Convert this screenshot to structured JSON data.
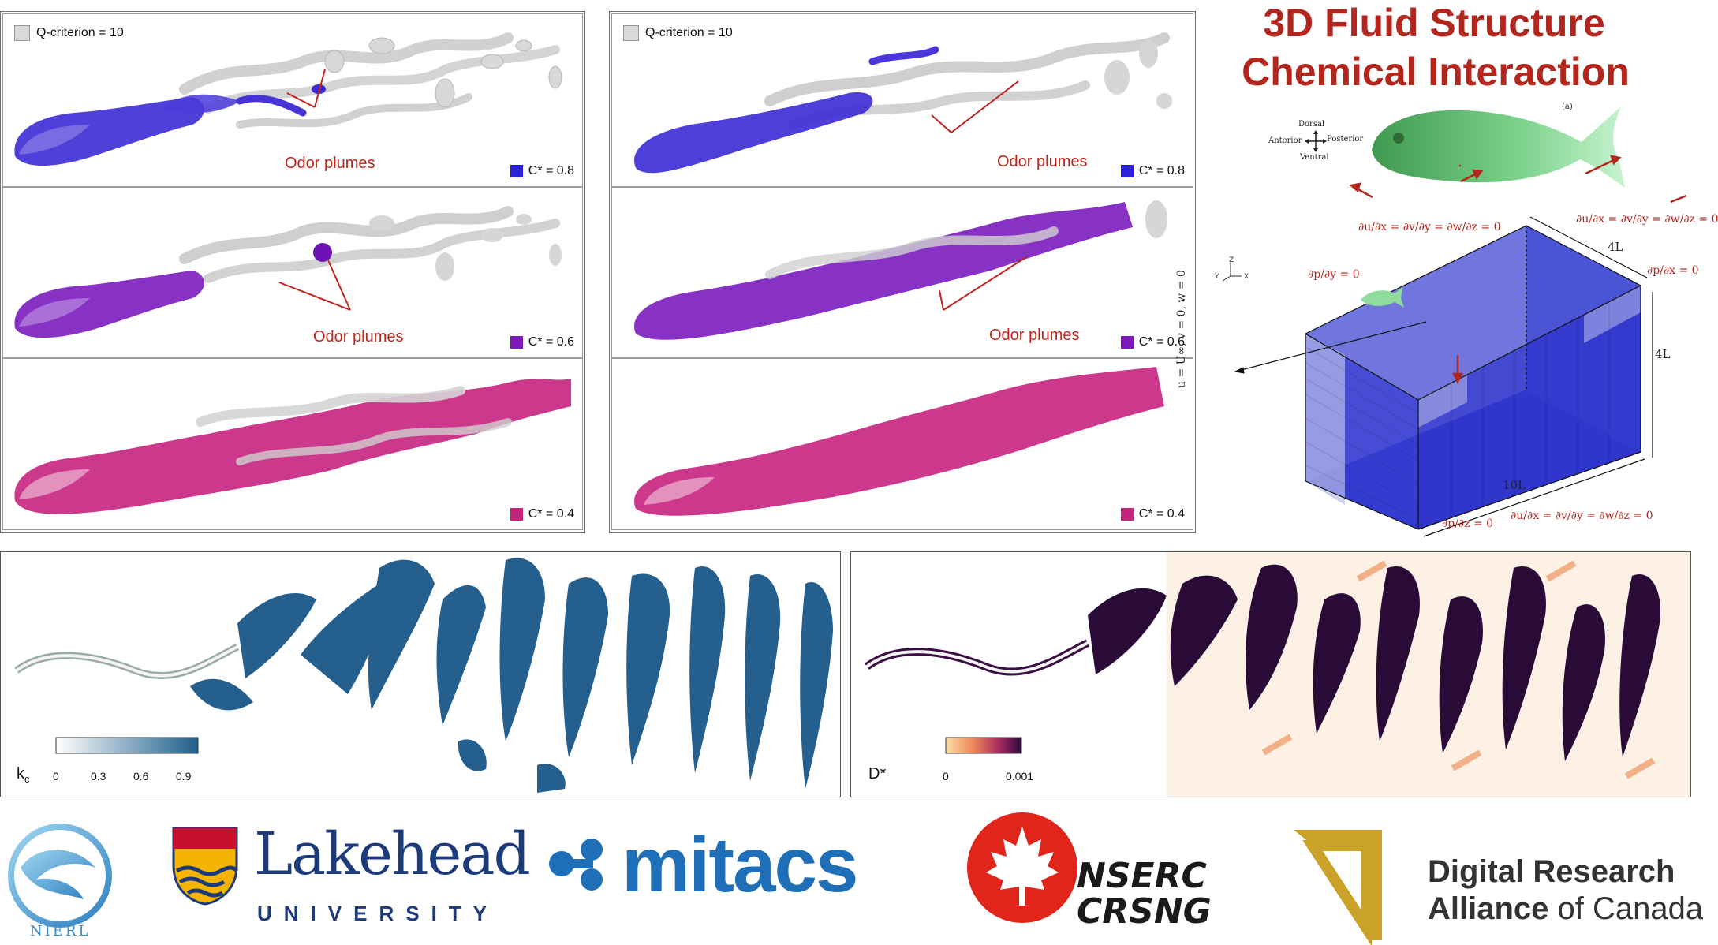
{
  "panels_3d": {
    "left": {
      "q_legend": "Q-criterion = 10",
      "odor_label_1": "Odor plumes",
      "odor_label_2": "Odor plumes",
      "c_labels": [
        "C* = 0.8",
        "C* = 0.6",
        "C* = 0.4"
      ]
    },
    "right": {
      "q_legend": "Q-criterion = 10",
      "odor_label_1": "Odor plumes",
      "odor_label_2": "Odor plumes",
      "c_labels": [
        "C* = 0.8",
        "C* = 0.6",
        "C* = 0.4"
      ]
    },
    "colors": {
      "c08": "#2b22d8",
      "c06": "#7a19b8",
      "c04": "#c4247d",
      "vortex": "#d9d9d9"
    }
  },
  "fsci": {
    "title_line1": "3D Fluid Structure",
    "title_line2": "Chemical Interaction",
    "fig_tag": "(a)",
    "orient": {
      "dorsal": "Dorsal",
      "ventral": "Ventral",
      "anterior": "Anterior",
      "posterior": "Posterior"
    },
    "axes": {
      "x": "X",
      "y": "Y",
      "z": "Z"
    },
    "bc_top": "∂u/∂x = ∂v/∂y = ∂w/∂z = 0",
    "bc_top_right": "∂u/∂x = ∂v/∂y = ∂w/∂z = 0",
    "bc_side": "∂p/∂y = 0",
    "bc_right": "∂p/∂x = 0",
    "bc_bottom_p": "∂p/∂z = 0",
    "bc_bottom_u": "∂u/∂x = ∂v/∂y = ∂w/∂z = 0",
    "inlet": "u = U∞, v = 0, w = 0",
    "dims": {
      "w": "4L",
      "h": "4L",
      "l": "10L"
    }
  },
  "fields_2d": {
    "left": {
      "label": "k",
      "label_sub": "c",
      "ticks": [
        "0",
        "0.3",
        "0.6",
        "0.9"
      ],
      "color_max": "#1f5f8b"
    },
    "right": {
      "label": "D*",
      "ticks": [
        "0",
        "0.001"
      ],
      "color_max": "#2b0a3d"
    }
  },
  "logos": {
    "nierl": "NIERL",
    "lakehead": "Lakehead",
    "lakehead_sub": "UNIVERSITY",
    "mitacs": "mitacs",
    "nserc": "NSERC",
    "crsng": "CRSNG",
    "dra_line1": "Digital Research",
    "dra_line2_a": "Alliance",
    "dra_line2_b": " of Canada"
  }
}
